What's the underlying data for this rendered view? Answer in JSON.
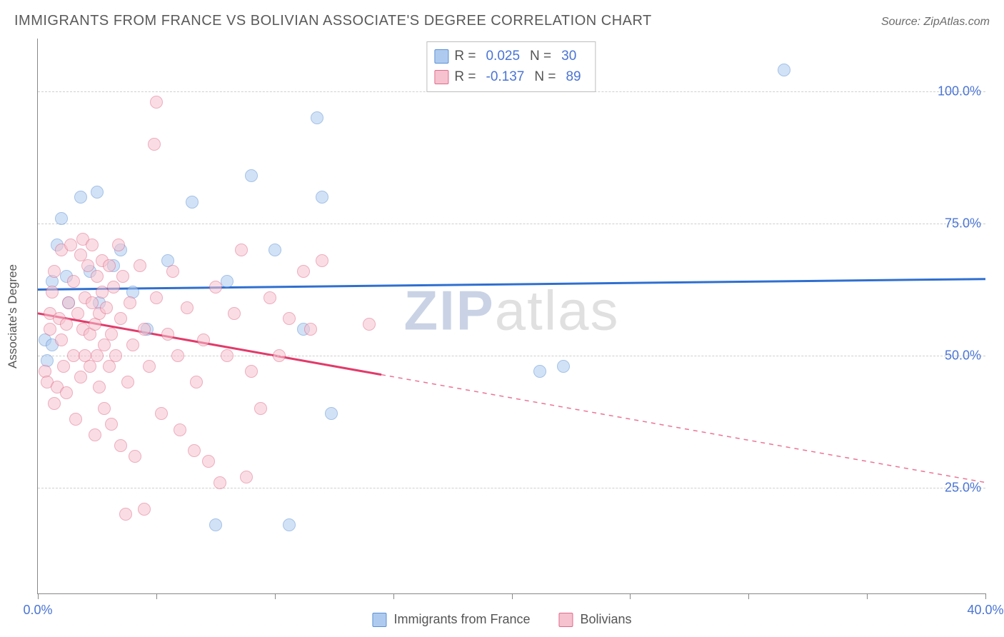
{
  "title": "IMMIGRANTS FROM FRANCE VS BOLIVIAN ASSOCIATE'S DEGREE CORRELATION CHART",
  "source": "Source: ZipAtlas.com",
  "y_axis_title": "Associate's Degree",
  "watermark_z": "ZIP",
  "watermark_rest": "atlas",
  "chart": {
    "type": "scatter",
    "background_color": "#ffffff",
    "grid_color": "#cfcfcf",
    "axis_color": "#888888",
    "xlim": [
      0,
      40
    ],
    "ylim": [
      5,
      110
    ],
    "xticks": [
      0,
      5,
      10,
      15,
      20,
      25,
      30,
      35,
      40
    ],
    "xtick_labels": {
      "0": "0.0%",
      "40": "40.0%"
    },
    "yticks": [
      25,
      50,
      75,
      100
    ],
    "ytick_labels": {
      "25": "25.0%",
      "50": "50.0%",
      "75": "75.0%",
      "100": "100.0%"
    },
    "marker_radius": 9,
    "marker_opacity": 0.55,
    "tick_label_color": "#4a74d4",
    "tick_label_fontsize": 18
  },
  "series": [
    {
      "key": "france",
      "label": "Immigrants from France",
      "fill": "#aecbef",
      "stroke": "#5a8fd6",
      "line_color": "#2f6fd0",
      "line_width": 3,
      "R": "0.025",
      "N": "30",
      "reg": {
        "x0": 0,
        "y0": 62.5,
        "x1": 40,
        "y1": 64.5,
        "solid_to_x": 40
      },
      "points": [
        [
          0.3,
          53
        ],
        [
          0.4,
          49
        ],
        [
          0.6,
          64
        ],
        [
          0.6,
          52
        ],
        [
          0.8,
          71
        ],
        [
          1.0,
          76
        ],
        [
          1.2,
          65
        ],
        [
          1.3,
          60
        ],
        [
          1.8,
          80
        ],
        [
          2.2,
          66
        ],
        [
          2.5,
          81
        ],
        [
          2.6,
          60
        ],
        [
          3.2,
          67
        ],
        [
          3.5,
          70
        ],
        [
          4.0,
          62
        ],
        [
          4.6,
          55
        ],
        [
          5.5,
          68
        ],
        [
          6.5,
          79
        ],
        [
          7.5,
          18
        ],
        [
          8.0,
          64
        ],
        [
          9.0,
          84
        ],
        [
          10.0,
          70
        ],
        [
          10.6,
          18
        ],
        [
          11.2,
          55
        ],
        [
          11.8,
          95
        ],
        [
          12.0,
          80
        ],
        [
          12.4,
          39
        ],
        [
          21.2,
          47
        ],
        [
          22.2,
          48
        ],
        [
          31.5,
          104
        ]
      ]
    },
    {
      "key": "bolivians",
      "label": "Bolivians",
      "fill": "#f6c2cf",
      "stroke": "#e06a8a",
      "line_color": "#e23a6a",
      "line_width": 3,
      "R": "-0.137",
      "N": "89",
      "reg": {
        "x0": 0,
        "y0": 58,
        "x1": 40,
        "y1": 26,
        "solid_to_x": 14.5
      },
      "points": [
        [
          0.3,
          47
        ],
        [
          0.4,
          45
        ],
        [
          0.5,
          55
        ],
        [
          0.5,
          58
        ],
        [
          0.6,
          62
        ],
        [
          0.7,
          66
        ],
        [
          0.7,
          41
        ],
        [
          0.8,
          44
        ],
        [
          0.9,
          57
        ],
        [
          1.0,
          70
        ],
        [
          1.0,
          53
        ],
        [
          1.1,
          48
        ],
        [
          1.2,
          43
        ],
        [
          1.2,
          56
        ],
        [
          1.3,
          60
        ],
        [
          1.4,
          71
        ],
        [
          1.5,
          50
        ],
        [
          1.5,
          64
        ],
        [
          1.6,
          38
        ],
        [
          1.7,
          58
        ],
        [
          1.8,
          46
        ],
        [
          1.8,
          69
        ],
        [
          1.9,
          55
        ],
        [
          1.9,
          72
        ],
        [
          2.0,
          61
        ],
        [
          2.0,
          50
        ],
        [
          2.1,
          67
        ],
        [
          2.2,
          54
        ],
        [
          2.2,
          48
        ],
        [
          2.3,
          60
        ],
        [
          2.3,
          71
        ],
        [
          2.4,
          56
        ],
        [
          2.4,
          35
        ],
        [
          2.5,
          50
        ],
        [
          2.5,
          65
        ],
        [
          2.6,
          58
        ],
        [
          2.6,
          44
        ],
        [
          2.7,
          62
        ],
        [
          2.7,
          68
        ],
        [
          2.8,
          40
        ],
        [
          2.8,
          52
        ],
        [
          2.9,
          59
        ],
        [
          3.0,
          48
        ],
        [
          3.0,
          67
        ],
        [
          3.1,
          54
        ],
        [
          3.1,
          37
        ],
        [
          3.2,
          63
        ],
        [
          3.3,
          50
        ],
        [
          3.4,
          71
        ],
        [
          3.5,
          33
        ],
        [
          3.5,
          57
        ],
        [
          3.6,
          65
        ],
        [
          3.7,
          20
        ],
        [
          3.8,
          45
        ],
        [
          3.9,
          60
        ],
        [
          4.0,
          52
        ],
        [
          4.1,
          31
        ],
        [
          4.3,
          67
        ],
        [
          4.5,
          55
        ],
        [
          4.5,
          21
        ],
        [
          4.7,
          48
        ],
        [
          4.9,
          90
        ],
        [
          5.0,
          61
        ],
        [
          5.0,
          98
        ],
        [
          5.2,
          39
        ],
        [
          5.5,
          54
        ],
        [
          5.7,
          66
        ],
        [
          5.9,
          50
        ],
        [
          6.0,
          36
        ],
        [
          6.3,
          59
        ],
        [
          6.6,
          32
        ],
        [
          6.7,
          45
        ],
        [
          7.0,
          53
        ],
        [
          7.2,
          30
        ],
        [
          7.5,
          63
        ],
        [
          7.7,
          26
        ],
        [
          8.0,
          50
        ],
        [
          8.3,
          58
        ],
        [
          8.6,
          70
        ],
        [
          8.8,
          27
        ],
        [
          9.0,
          47
        ],
        [
          9.4,
          40
        ],
        [
          9.8,
          61
        ],
        [
          10.2,
          50
        ],
        [
          10.6,
          57
        ],
        [
          11.2,
          66
        ],
        [
          11.5,
          55
        ],
        [
          12.0,
          68
        ],
        [
          14.0,
          56
        ]
      ]
    }
  ],
  "stats_legend_prefix_R": "R  =",
  "stats_legend_prefix_N": "N  ="
}
